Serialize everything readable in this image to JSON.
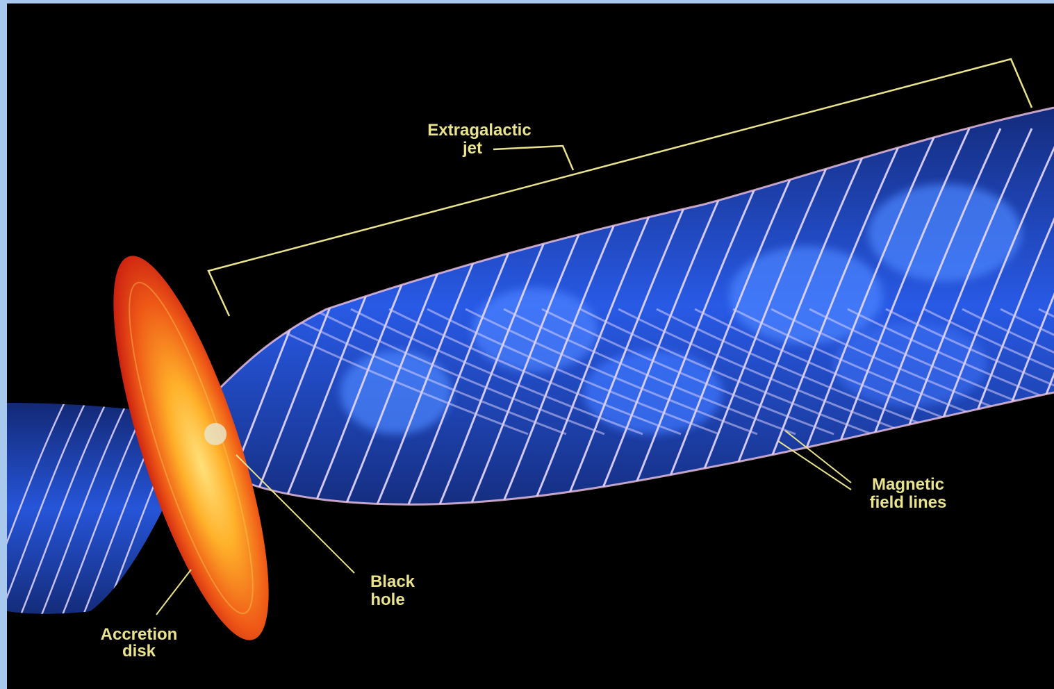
{
  "diagram": {
    "labels": {
      "jet": [
        "Extragalactic",
        "jet"
      ],
      "magnetic": [
        "Magnetic",
        "field lines"
      ],
      "blackhole": [
        "Black",
        "hole"
      ],
      "disk": [
        "Accretion",
        "disk"
      ]
    },
    "colors": {
      "background": "#000000",
      "frame": "#a9c8ee",
      "label": "#e9e38e",
      "jet_blue": "#2d64ff",
      "field_lines": "#e6d9ff",
      "disk_inner": "#ffb12a",
      "disk_outer": "#d91f12"
    }
  }
}
